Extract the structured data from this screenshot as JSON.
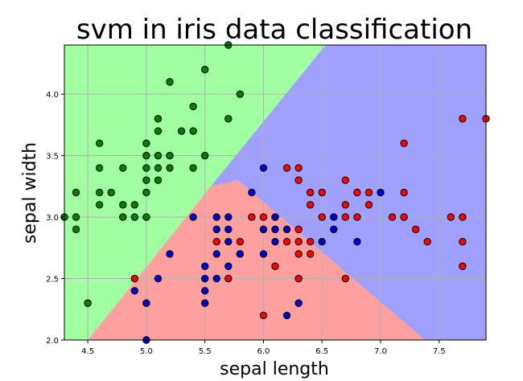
{
  "chart_data": {
    "type": "scatter",
    "title": "svm in iris data classification",
    "xlabel": "sepal length",
    "ylabel": "sepal width",
    "xlim": [
      4.3,
      7.9
    ],
    "ylim": [
      2.0,
      4.4
    ],
    "grid": true,
    "xticks": [
      {
        "value": 4.5,
        "label": "4.5"
      },
      {
        "value": 5.0,
        "label": "5.0"
      },
      {
        "value": 5.5,
        "label": "5.5"
      },
      {
        "value": 6.0,
        "label": "6.0"
      },
      {
        "value": 6.5,
        "label": "6.5"
      },
      {
        "value": 7.0,
        "label": "7.0"
      },
      {
        "value": 7.5,
        "label": "7.5"
      }
    ],
    "yticks": [
      {
        "value": 2.0,
        "label": "2.0"
      },
      {
        "value": 2.5,
        "label": "2.5"
      },
      {
        "value": 3.0,
        "label": "3.0"
      },
      {
        "value": 3.5,
        "label": "3.5"
      },
      {
        "value": 4.0,
        "label": "4.0"
      }
    ],
    "regions": [
      {
        "class": "setosa",
        "color": "#a0ffa0",
        "polygon": [
          [
            4.3,
            2.28
          ],
          [
            5.55,
            3.25
          ],
          [
            7.38,
            2.0
          ],
          [
            7.9,
            2.0
          ],
          [
            7.9,
            4.4
          ],
          [
            5.78,
            4.4
          ],
          [
            5.0,
            3.5
          ],
          [
            4.3,
            2.65
          ]
        ]
      },
      {
        "class": "versicolor",
        "color": "#ffa0a0",
        "polygon": [
          [
            4.3,
            2.0
          ],
          [
            4.3,
            2.28
          ],
          [
            5.55,
            3.25
          ],
          [
            7.38,
            2.0
          ]
        ]
      },
      {
        "class": "virginica",
        "color": "#a0a0ff",
        "polygon": [
          [
            5.55,
            3.25
          ],
          [
            7.9,
            2.0
          ],
          [
            7.9,
            4.4
          ],
          [
            5.78,
            4.4
          ]
        ]
      }
    ],
    "boundaries": {
      "setosa": [
        [
          4.3,
          4.4
        ],
        [
          4.3,
          2.0
        ],
        [
          4.5,
          2.0
        ],
        [
          5.55,
          3.25
        ],
        [
          5.78,
          3.3
        ],
        [
          5.6,
          4.4
        ]
      ],
      "virginica": [
        [
          5.55,
          3.25
        ],
        [
          5.78,
          3.3
        ],
        [
          6.5,
          4.4
        ],
        [
          7.9,
          4.4
        ],
        [
          7.9,
          2.0
        ],
        [
          7.38,
          2.0
        ]
      ]
    },
    "series": [
      {
        "class": "setosa",
        "color": "#008000",
        "points": [
          [
            5.7,
            4.4
          ],
          [
            5.5,
            4.2
          ],
          [
            5.2,
            4.1
          ],
          [
            5.8,
            4.0
          ],
          [
            5.4,
            3.9
          ],
          [
            5.1,
            3.8
          ],
          [
            5.7,
            3.8
          ],
          [
            5.1,
            3.7
          ],
          [
            5.3,
            3.7
          ],
          [
            5.4,
            3.7
          ],
          [
            4.6,
            3.6
          ],
          [
            5.0,
            3.6
          ],
          [
            5.1,
            3.5
          ],
          [
            5.2,
            3.5
          ],
          [
            5.5,
            3.5
          ],
          [
            5.0,
            3.5
          ],
          [
            4.6,
            3.4
          ],
          [
            4.8,
            3.4
          ],
          [
            5.0,
            3.4
          ],
          [
            5.1,
            3.4
          ],
          [
            5.2,
            3.4
          ],
          [
            5.4,
            3.4
          ],
          [
            5.0,
            3.3
          ],
          [
            5.1,
            3.3
          ],
          [
            4.4,
            3.2
          ],
          [
            4.6,
            3.2
          ],
          [
            4.7,
            3.2
          ],
          [
            5.0,
            3.2
          ],
          [
            4.6,
            3.1
          ],
          [
            4.8,
            3.1
          ],
          [
            4.9,
            3.1
          ],
          [
            4.3,
            3.0
          ],
          [
            4.4,
            3.0
          ],
          [
            4.8,
            3.0
          ],
          [
            4.9,
            3.0
          ],
          [
            5.0,
            3.0
          ],
          [
            4.4,
            2.9
          ],
          [
            4.5,
            2.3
          ]
        ]
      },
      {
        "class": "versicolor",
        "color": "#ff0000",
        "points": [
          [
            7.2,
            3.6
          ],
          [
            6.2,
            3.4
          ],
          [
            6.3,
            3.4
          ],
          [
            6.3,
            3.3
          ],
          [
            6.7,
            3.3
          ],
          [
            6.4,
            3.2
          ],
          [
            6.5,
            3.2
          ],
          [
            6.8,
            3.2
          ],
          [
            6.9,
            3.2
          ],
          [
            7.2,
            3.2
          ],
          [
            6.4,
            3.1
          ],
          [
            6.7,
            3.1
          ],
          [
            6.9,
            3.1
          ],
          [
            6.3,
            2.9
          ],
          [
            6.5,
            3.0
          ],
          [
            6.7,
            3.0
          ],
          [
            6.8,
            3.0
          ],
          [
            7.1,
            3.0
          ],
          [
            7.2,
            3.0
          ],
          [
            7.6,
            3.0
          ],
          [
            7.7,
            3.0
          ],
          [
            6.1,
            3.0
          ],
          [
            6.0,
            3.0
          ],
          [
            5.9,
            3.0
          ],
          [
            7.3,
            2.9
          ],
          [
            6.2,
            2.8
          ],
          [
            6.3,
            2.8
          ],
          [
            6.4,
            2.8
          ],
          [
            7.4,
            2.8
          ],
          [
            7.7,
            2.8
          ],
          [
            5.6,
            2.8
          ],
          [
            5.8,
            2.8
          ],
          [
            6.3,
            2.7
          ],
          [
            6.4,
            2.7
          ],
          [
            5.8,
            2.7
          ],
          [
            6.1,
            2.6
          ],
          [
            7.7,
            2.6
          ],
          [
            5.7,
            2.5
          ],
          [
            6.3,
            2.5
          ],
          [
            6.7,
            2.5
          ],
          [
            4.9,
            2.5
          ],
          [
            6.0,
            2.2
          ],
          [
            7.7,
            3.8
          ],
          [
            7.9,
            3.8
          ]
        ]
      },
      {
        "class": "virginica",
        "color": "#0000cd",
        "points": [
          [
            6.0,
            3.4
          ],
          [
            5.9,
            3.2
          ],
          [
            7.0,
            3.2
          ],
          [
            6.6,
            3.0
          ],
          [
            5.6,
            3.0
          ],
          [
            5.7,
            3.0
          ],
          [
            6.1,
            3.0
          ],
          [
            5.4,
            3.0
          ],
          [
            5.6,
            2.9
          ],
          [
            5.7,
            2.9
          ],
          [
            6.0,
            2.9
          ],
          [
            6.1,
            2.9
          ],
          [
            6.2,
            2.9
          ],
          [
            6.6,
            2.9
          ],
          [
            5.7,
            2.8
          ],
          [
            6.1,
            2.8
          ],
          [
            6.5,
            2.8
          ],
          [
            6.8,
            2.8
          ],
          [
            5.2,
            2.7
          ],
          [
            5.6,
            2.7
          ],
          [
            5.8,
            2.7
          ],
          [
            6.0,
            2.7
          ],
          [
            5.5,
            2.6
          ],
          [
            5.7,
            2.6
          ],
          [
            5.5,
            2.5
          ],
          [
            5.6,
            2.5
          ],
          [
            5.1,
            2.5
          ],
          [
            4.9,
            2.4
          ],
          [
            5.5,
            2.4
          ],
          [
            5.0,
            2.3
          ],
          [
            5.5,
            2.3
          ],
          [
            6.3,
            2.3
          ],
          [
            6.2,
            2.2
          ],
          [
            5.0,
            2.0
          ]
        ]
      }
    ]
  }
}
